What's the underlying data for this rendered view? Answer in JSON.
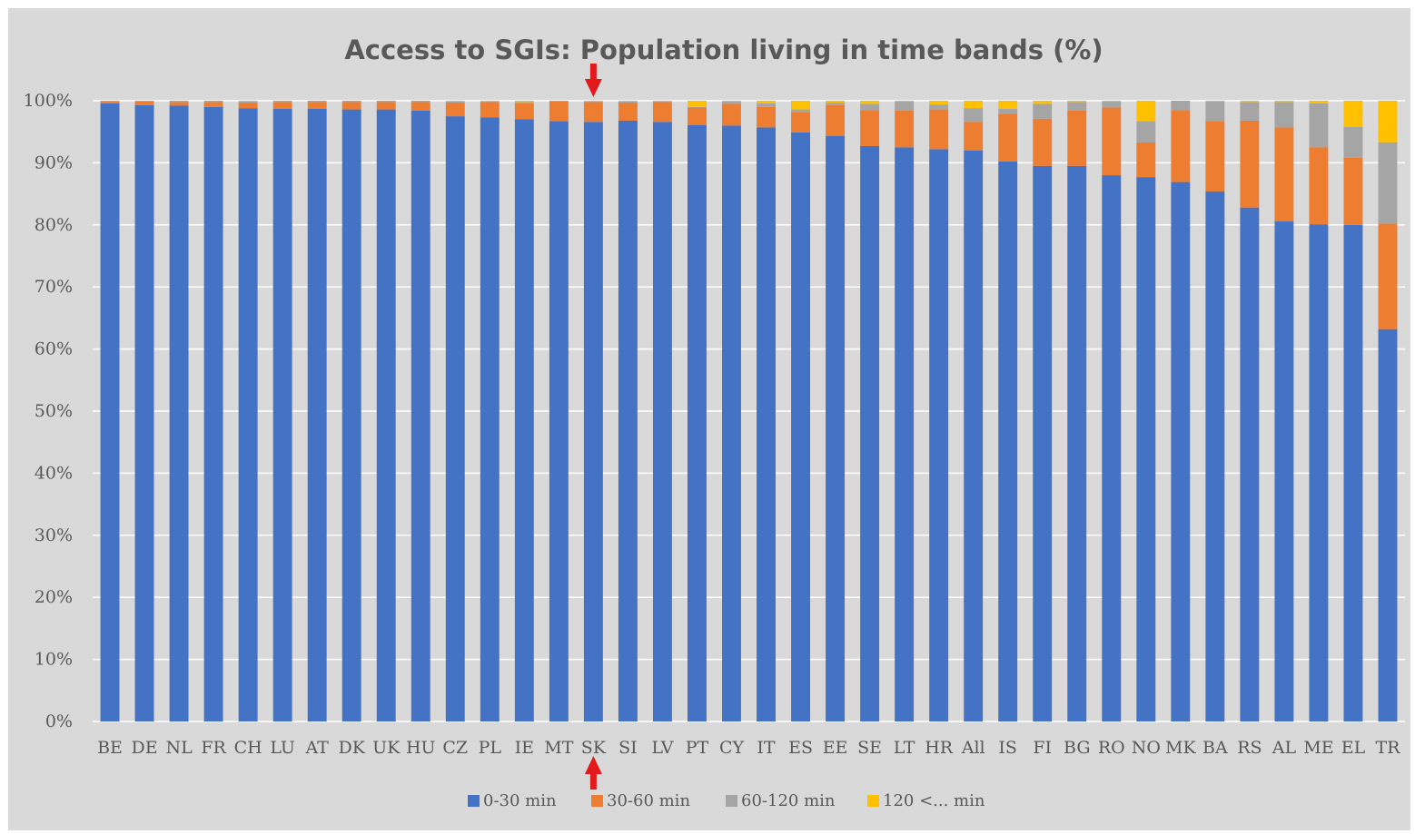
{
  "chart_data": {
    "type": "bar",
    "stacked": true,
    "title": "Access to SGIs: Population living in time bands (%)",
    "xlabel": "",
    "ylabel": "",
    "ylim": [
      0,
      100
    ],
    "y_ticks": [
      "0%",
      "10%",
      "20%",
      "30%",
      "40%",
      "50%",
      "60%",
      "70%",
      "80%",
      "90%",
      "100%"
    ],
    "grid": true,
    "legend_position": "bottom",
    "highlighted_category": "SK",
    "categories": [
      "BE",
      "DE",
      "NL",
      "FR",
      "CH",
      "LU",
      "AT",
      "DK",
      "UK",
      "HU",
      "CZ",
      "PL",
      "IE",
      "MT",
      "SK",
      "SI",
      "LV",
      "PT",
      "CY",
      "IT",
      "ES",
      "EE",
      "SE",
      "LT",
      "HR",
      "All",
      "IS",
      "FI",
      "BG",
      "RO",
      "NO",
      "MK",
      "BA",
      "RS",
      "AL",
      "ME",
      "EL",
      "TR"
    ],
    "series": [
      {
        "name": "0-30 min",
        "color": "#4472c4",
        "values": [
          99.6,
          99.3,
          99.2,
          99.0,
          98.8,
          98.7,
          98.7,
          98.6,
          98.6,
          98.4,
          97.5,
          97.3,
          97.0,
          96.7,
          96.6,
          96.8,
          96.6,
          96.1,
          96.0,
          95.7,
          94.9,
          94.3,
          92.7,
          92.5,
          92.2,
          92.0,
          90.2,
          89.5,
          89.5,
          88.0,
          87.7,
          86.9,
          85.4,
          82.8,
          80.6,
          80.1,
          80.0,
          63.2
        ]
      },
      {
        "name": "30-60 min",
        "color": "#ed7d31",
        "values": [
          0.3,
          0.6,
          0.6,
          0.8,
          0.9,
          1.1,
          1.1,
          1.2,
          1.2,
          1.4,
          2.2,
          2.5,
          2.6,
          3.2,
          3.2,
          2.9,
          3.2,
          2.8,
          3.5,
          3.3,
          3.2,
          5.0,
          5.8,
          5.9,
          6.4,
          4.6,
          7.7,
          7.6,
          8.9,
          10.9,
          5.6,
          11.6,
          11.3,
          14.0,
          15.1,
          12.4,
          10.8,
          17.0
        ]
      },
      {
        "name": "60-120 min",
        "color": "#a5a5a5",
        "values": [
          0.1,
          0.1,
          0.2,
          0.2,
          0.2,
          0.2,
          0.2,
          0.2,
          0.2,
          0.2,
          0.2,
          0.1,
          0.2,
          0.1,
          0.1,
          0.2,
          0.1,
          0.1,
          0.4,
          0.6,
          0.5,
          0.4,
          1.0,
          1.5,
          0.8,
          2.2,
          0.8,
          2.4,
          1.4,
          1.0,
          3.4,
          1.5,
          3.2,
          3.0,
          4.1,
          7.1,
          5.0,
          13.1
        ]
      },
      {
        "name": "120 <... min",
        "color": "#ffc000",
        "values": [
          0,
          0,
          0,
          0,
          0.1,
          0,
          0,
          0,
          0,
          0,
          0.1,
          0.1,
          0.2,
          0,
          0.1,
          0.1,
          0.1,
          1.0,
          0.1,
          0.4,
          1.4,
          0.3,
          0.5,
          0.1,
          0.6,
          1.2,
          1.3,
          0.5,
          0.2,
          0.1,
          3.3,
          0,
          0.1,
          0.2,
          0.2,
          0.4,
          4.2,
          6.7
        ]
      }
    ]
  }
}
